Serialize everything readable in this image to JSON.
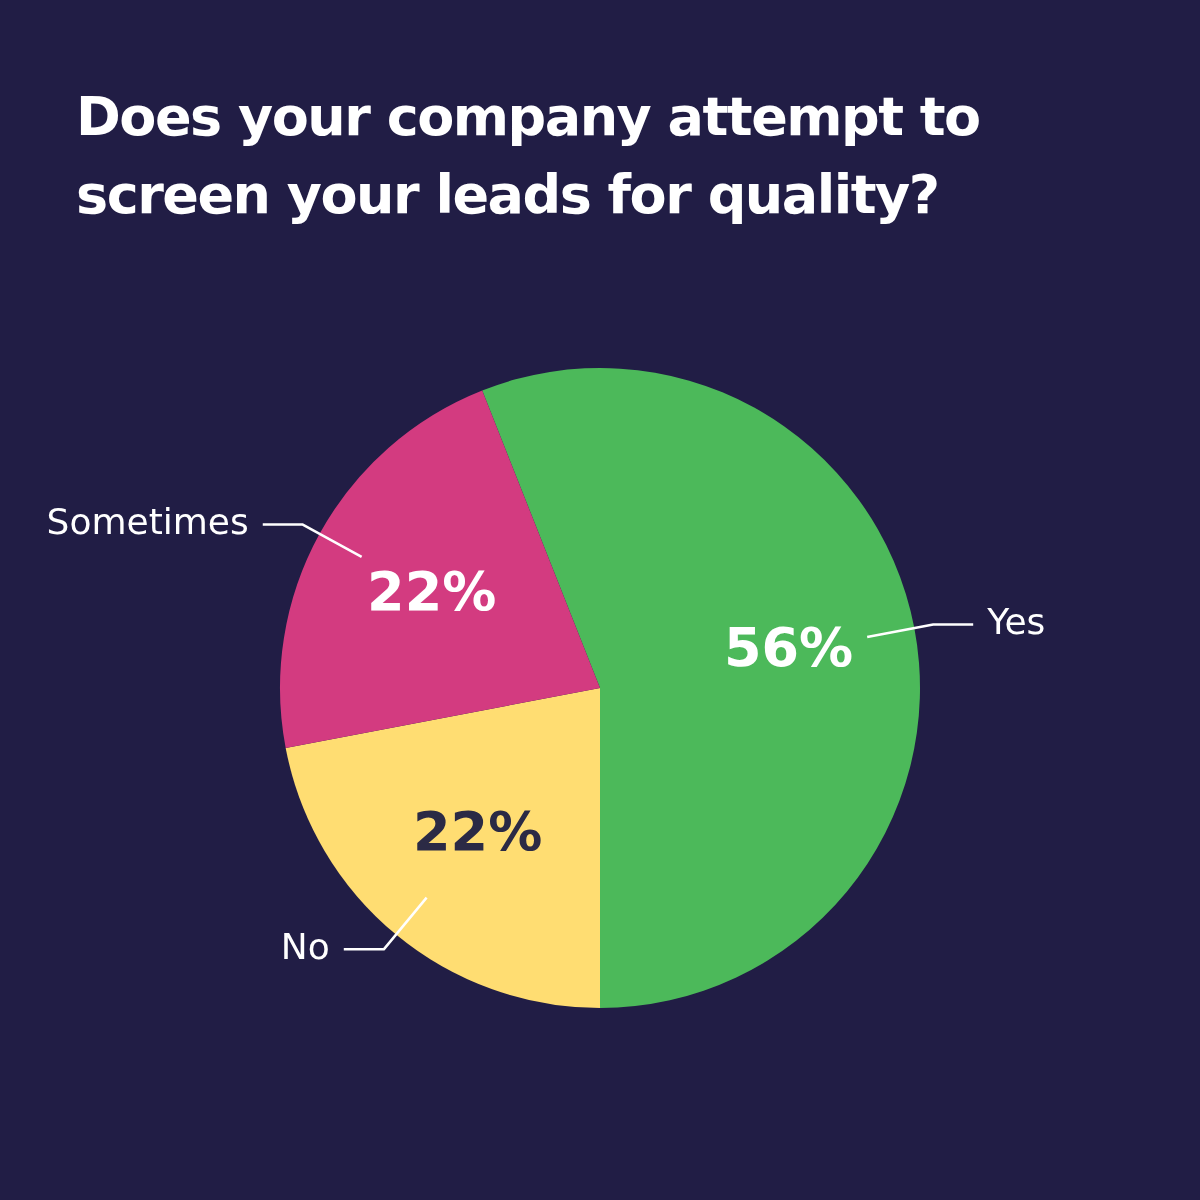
{
  "chart_data": {
    "type": "pie",
    "title": "Does your company attempt to screen your leads for quality?",
    "categories": [
      "Yes",
      "No",
      "Sometimes"
    ],
    "values": [
      56,
      22,
      22
    ],
    "colors": [
      "#4cb95a",
      "#ffdd72",
      "#d33b80"
    ],
    "value_labels": [
      "56%",
      "22%",
      "22%"
    ]
  }
}
